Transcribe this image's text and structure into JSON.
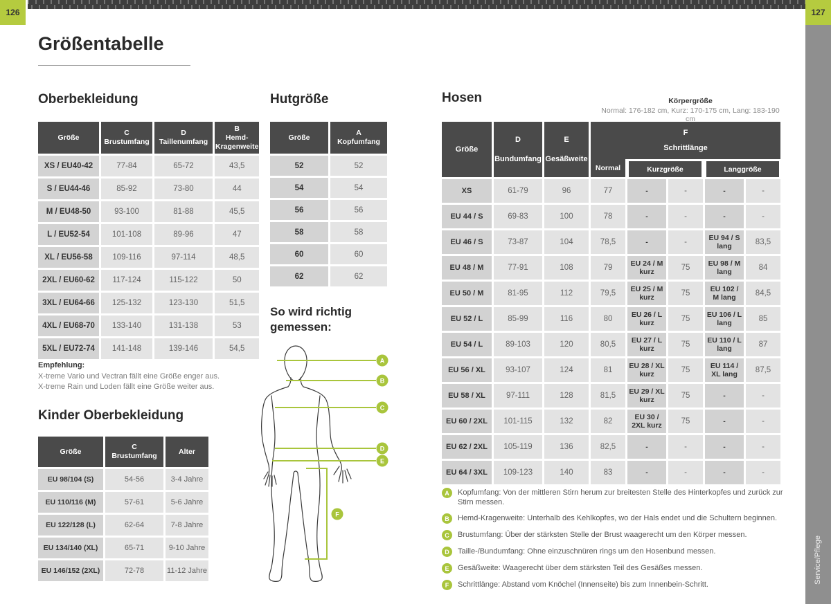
{
  "page": {
    "title": "Größentabelle",
    "number_left": "126",
    "number_right": "127",
    "side_tab": "Service/Pflege"
  },
  "colors": {
    "accent_green": "#aec437",
    "header_dark": "#4a4a4a",
    "cell_label_gray": "#d3d3d3",
    "cell_value_gray": "#e4e4e4",
    "side_tab_gray": "#8f8f8f"
  },
  "oberbekleidung": {
    "heading": "Oberbekleidung",
    "headers": [
      {
        "letter": "",
        "label": "Größe"
      },
      {
        "letter": "C",
        "label": "Brustumfang"
      },
      {
        "letter": "D",
        "label": "Taillenumfang"
      },
      {
        "letter": "B",
        "label": "Hemd-Kragenweite"
      }
    ],
    "rows": [
      [
        "XS / EU40-42",
        "77-84",
        "65-72",
        "43,5"
      ],
      [
        "S / EU44-46",
        "85-92",
        "73-80",
        "44"
      ],
      [
        "M / EU48-50",
        "93-100",
        "81-88",
        "45,5"
      ],
      [
        "L / EU52-54",
        "101-108",
        "89-96",
        "47"
      ],
      [
        "XL / EU56-58",
        "109-116",
        "97-114",
        "48,5"
      ],
      [
        "2XL / EU60-62",
        "117-124",
        "115-122",
        "50"
      ],
      [
        "3XL / EU64-66",
        "125-132",
        "123-130",
        "51,5"
      ],
      [
        "4XL / EU68-70",
        "133-140",
        "131-138",
        "53"
      ],
      [
        "5XL / EU72-74",
        "141-148",
        "139-146",
        "54,5"
      ]
    ],
    "note_title": "Empfehlung:",
    "notes": [
      "X-treme Vario und Vectran fällt eine Größe enger aus.",
      "X-treme Rain und Loden fällt eine Größe weiter aus."
    ]
  },
  "hutgroesse": {
    "heading": "Hutgröße",
    "headers": [
      {
        "letter": "",
        "label": "Größe"
      },
      {
        "letter": "A",
        "label": "Kopfumfang"
      }
    ],
    "rows": [
      [
        "52",
        "52"
      ],
      [
        "54",
        "54"
      ],
      [
        "56",
        "56"
      ],
      [
        "58",
        "58"
      ],
      [
        "60",
        "60"
      ],
      [
        "62",
        "62"
      ]
    ]
  },
  "hosen": {
    "heading": "Hosen",
    "koerpergroesse_title": "Körpergröße",
    "koerpergroesse_note": "Normal: 176-182 cm, Kurz: 170-175 cm, Lang: 183-190 cm",
    "headers": {
      "size": "Größe",
      "bund_letter": "D",
      "bund": "Bundumfang",
      "gesaess_letter": "E",
      "gesaess": "Gesäßweite",
      "schritt_letter": "F",
      "schritt": "Schrittlänge",
      "sub_normal": "Normal",
      "sub_kurz": "Kurzgröße",
      "sub_lang": "Langgröße"
    },
    "rows": [
      [
        "XS",
        "61-79",
        "96",
        "77",
        "-",
        "-",
        "-",
        "-"
      ],
      [
        "EU 44 / S",
        "69-83",
        "100",
        "78",
        "-",
        "-",
        "-",
        "-"
      ],
      [
        "EU 46 / S",
        "73-87",
        "104",
        "78,5",
        "-",
        "-",
        "EU 94 / S lang",
        "83,5"
      ],
      [
        "EU 48 / M",
        "77-91",
        "108",
        "79",
        "EU 24 / M kurz",
        "75",
        "EU 98 / M lang",
        "84"
      ],
      [
        "EU 50 / M",
        "81-95",
        "112",
        "79,5",
        "EU 25 / M kurz",
        "75",
        "EU 102 / M lang",
        "84,5"
      ],
      [
        "EU 52 / L",
        "85-99",
        "116",
        "80",
        "EU 26 / L kurz",
        "75",
        "EU 106 / L lang",
        "85"
      ],
      [
        "EU 54 / L",
        "89-103",
        "120",
        "80,5",
        "EU 27 / L kurz",
        "75",
        "EU 110 / L lang",
        "87"
      ],
      [
        "EU 56 / XL",
        "93-107",
        "124",
        "81",
        "EU 28 / XL kurz",
        "75",
        "EU 114 / XL lang",
        "87,5"
      ],
      [
        "EU 58 / XL",
        "97-111",
        "128",
        "81,5",
        "EU 29 / XL kurz",
        "75",
        "-",
        "-"
      ],
      [
        "EU 60 / 2XL",
        "101-115",
        "132",
        "82",
        "EU 30 / 2XL kurz",
        "75",
        "-",
        "-"
      ],
      [
        "EU 62 / 2XL",
        "105-119",
        "136",
        "82,5",
        "-",
        "-",
        "-",
        "-"
      ],
      [
        "EU 64 / 3XL",
        "109-123",
        "140",
        "83",
        "-",
        "-",
        "-",
        "-"
      ]
    ]
  },
  "kinder": {
    "heading": "Kinder Oberbekleidung",
    "headers": [
      {
        "letter": "",
        "label": "Größe"
      },
      {
        "letter": "C",
        "label": "Brustumfang"
      },
      {
        "letter": "",
        "label": "Alter"
      }
    ],
    "rows": [
      [
        "EU 98/104 (S)",
        "54-56",
        "3-4 Jahre"
      ],
      [
        "EU 110/116 (M)",
        "57-61",
        "5-6 Jahre"
      ],
      [
        "EU 122/128 (L)",
        "62-64",
        "7-8 Jahre"
      ],
      [
        "EU 134/140 (XL)",
        "65-71",
        "9-10 Jahre"
      ],
      [
        "EU 146/152 (2XL)",
        "72-78",
        "11-12 Jahre"
      ]
    ]
  },
  "figure": {
    "heading": "So wird richtig gemessen:",
    "labels": [
      "A",
      "B",
      "C",
      "D",
      "E",
      "F"
    ]
  },
  "legend": {
    "items": [
      {
        "letter": "A",
        "text": "Kopfumfang: Von der mittleren Stirn herum zur breitesten Stelle des Hinterkopfes und zurück zur Stirn messen."
      },
      {
        "letter": "B",
        "text": "Hemd-Kragenweite: Unterhalb des Kehlkopfes, wo der Hals endet und die Schultern beginnen."
      },
      {
        "letter": "C",
        "text": "Brustumfang: Über der stärksten Stelle der Brust waagerecht um den Körper messen."
      },
      {
        "letter": "D",
        "text": "Taille-/Bundumfang: Ohne einzuschnüren rings um den Hosenbund messen."
      },
      {
        "letter": "E",
        "text": "Gesäßweite: Waagerecht über dem stärksten Teil des Gesäßes messen."
      },
      {
        "letter": "F",
        "text": "Schrittlänge: Abstand vom Knöchel (Innenseite) bis zum Innenbein-Schritt."
      }
    ]
  }
}
